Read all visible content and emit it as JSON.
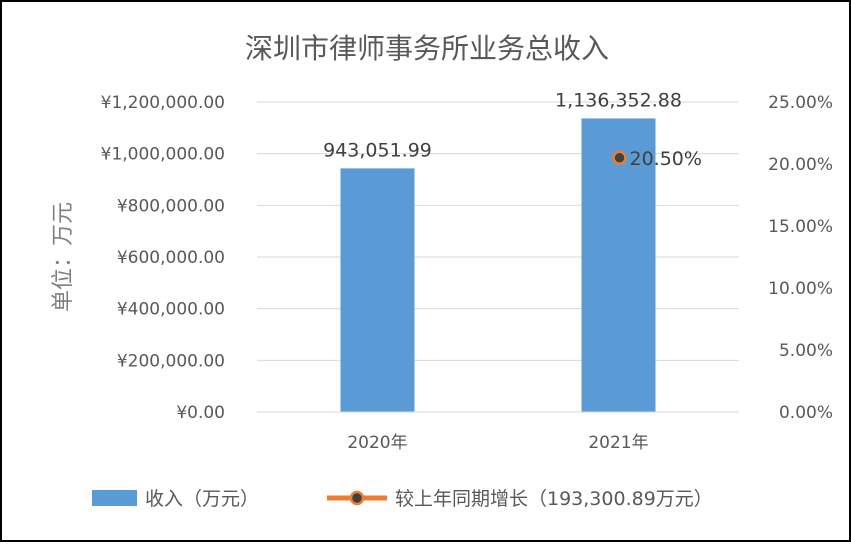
{
  "chart_data": {
    "type": "bar",
    "title": "深圳市律师事务所业务总收入",
    "ylabel": "单位：万元",
    "xlabel": "",
    "categories": [
      "2020年",
      "2021年"
    ],
    "ylim": [
      0,
      1200000
    ],
    "yticks": [
      0,
      200000,
      400000,
      600000,
      800000,
      1000000,
      1200000
    ],
    "ytick_labels": [
      "¥0.00",
      "¥200,000.00",
      "¥400,000.00",
      "¥600,000.00",
      "¥800,000.00",
      "¥1,000,000.00",
      "¥1,200,000.00"
    ],
    "y2lim": [
      0,
      25
    ],
    "y2ticks": [
      0,
      5,
      10,
      15,
      20,
      25
    ],
    "y2tick_labels": [
      "0.00%",
      "5.00%",
      "10.00%",
      "15.00%",
      "20.00%",
      "25.00%"
    ],
    "series": [
      {
        "name": "收入（万元）",
        "type": "bar",
        "axis": "left",
        "color": "#5b9bd5",
        "values": [
          943051.99,
          1136352.88
        ],
        "labels": [
          "943,051.99",
          "1,136,352.88"
        ]
      },
      {
        "name": "较上年同期增长（193,300.89万元）",
        "type": "line",
        "axis": "right",
        "color": "#ed7d31",
        "marker_fill": "#404040",
        "values": [
          null,
          20.5
        ],
        "labels": [
          "",
          "20.50%"
        ]
      }
    ],
    "grid": true,
    "legend_position": "bottom"
  }
}
